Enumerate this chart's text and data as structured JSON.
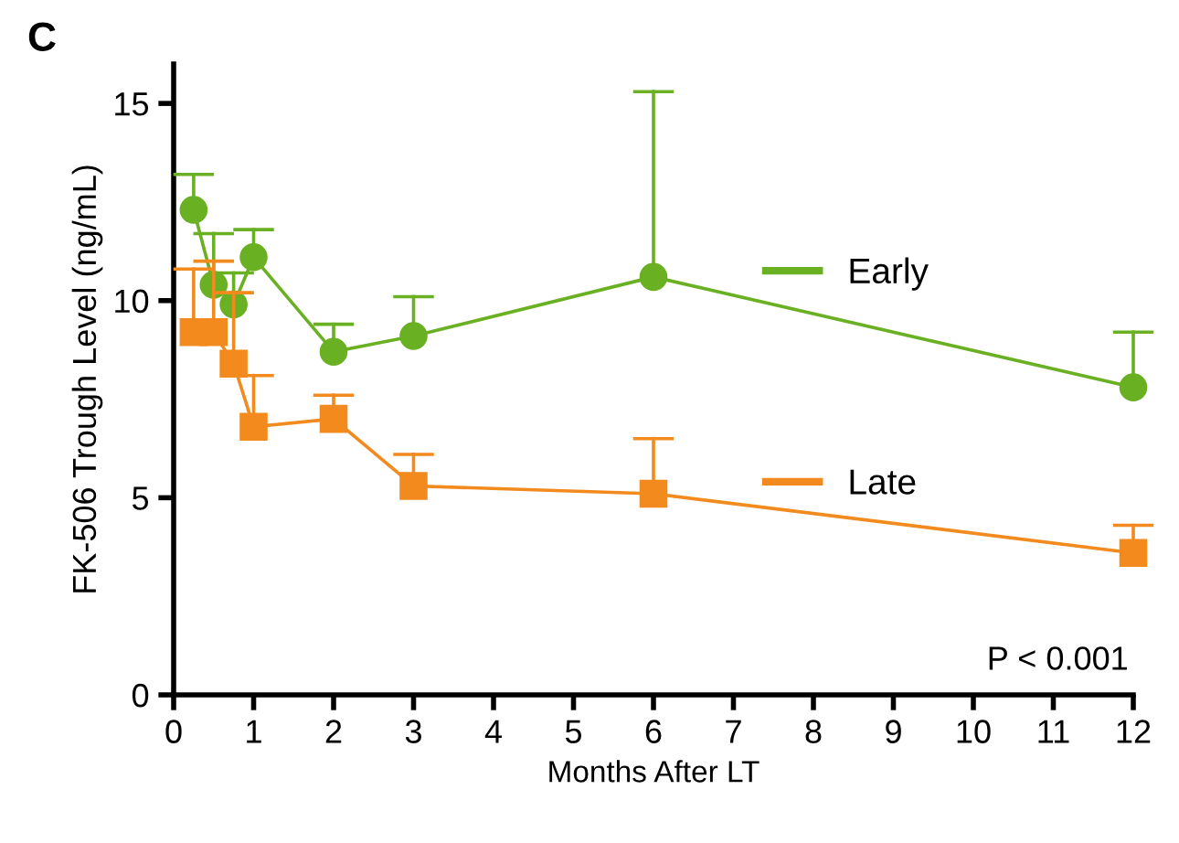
{
  "chart_data": {
    "type": "line",
    "title": "C",
    "xlabel": "Months After LT",
    "ylabel": "FK-506 Trough Level (ng/mL)",
    "x": [
      0.25,
      0.5,
      0.75,
      1,
      2,
      3,
      6,
      12
    ],
    "series": [
      {
        "name": "Early",
        "color": "#6ab023",
        "marker": "circle",
        "values": [
          12.3,
          10.4,
          9.9,
          11.1,
          8.7,
          9.1,
          10.6,
          7.8
        ],
        "errors": [
          [
            12.3,
            13.2
          ],
          [
            10.4,
            11.7
          ],
          [
            9.9,
            10.7
          ],
          [
            11.1,
            11.8
          ],
          [
            8.7,
            9.4
          ],
          [
            9.1,
            10.1
          ],
          [
            10.6,
            15.3
          ],
          [
            7.8,
            9.2
          ]
        ]
      },
      {
        "name": "Late",
        "color": "#f28a1e",
        "marker": "square",
        "values": [
          9.2,
          9.2,
          8.4,
          6.8,
          7.0,
          5.3,
          5.1,
          3.6
        ],
        "errors": [
          [
            9.2,
            10.8
          ],
          [
            9.2,
            11.0
          ],
          [
            8.4,
            10.2
          ],
          [
            6.8,
            8.1
          ],
          [
            7.0,
            7.6
          ],
          [
            5.3,
            6.1
          ],
          [
            5.1,
            6.5
          ],
          [
            3.6,
            4.3
          ]
        ]
      }
    ],
    "xlim": [
      0,
      12
    ],
    "ylim": [
      0,
      16
    ],
    "xticks": [
      0,
      1,
      2,
      3,
      4,
      5,
      6,
      7,
      8,
      9,
      10,
      11,
      12
    ],
    "yticks": [
      0,
      5,
      10,
      15
    ],
    "grid": false,
    "legend": "right",
    "annotations": [
      {
        "text": "P < 0.001"
      }
    ]
  }
}
